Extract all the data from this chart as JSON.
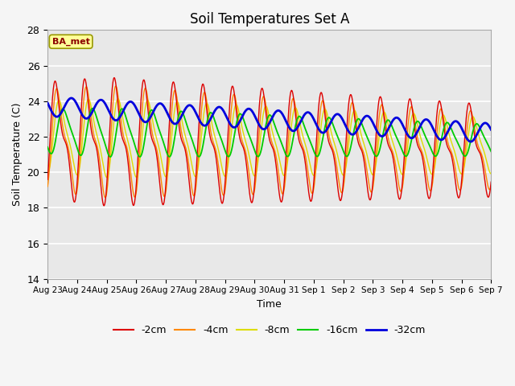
{
  "title": "Soil Temperatures Set A",
  "xlabel": "Time",
  "ylabel": "Soil Temperature (C)",
  "ylim": [
    14,
    28
  ],
  "xtick_labels": [
    "Aug 23",
    "Aug 24",
    "Aug 25",
    "Aug 26",
    "Aug 27",
    "Aug 28",
    "Aug 29",
    "Aug 30",
    "Aug 31",
    "Sep 1",
    "Sep 2",
    "Sep 3",
    "Sep 4",
    "Sep 5",
    "Sep 6",
    "Sep 7"
  ],
  "ytick_values": [
    14,
    16,
    18,
    20,
    22,
    24,
    26,
    28
  ],
  "legend_entries": [
    "-2cm",
    "-4cm",
    "-8cm",
    "-16cm",
    "-32cm"
  ],
  "colors": [
    "#dd0000",
    "#ff8800",
    "#dddd00",
    "#00cc00",
    "#0000dd"
  ],
  "annotation": "BA_met",
  "bg_color": "#e8e8e8",
  "grid_color": "#ffffff",
  "figsize": [
    6.4,
    4.8
  ],
  "dpi": 100
}
